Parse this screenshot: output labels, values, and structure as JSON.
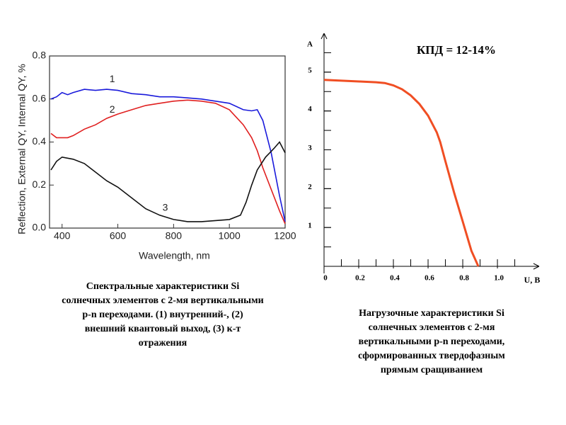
{
  "chart_data": [
    {
      "type": "line",
      "y_label": "Reflection, External QY, Internal QY, %",
      "x_label": "Wavelength, nm",
      "xlim": [
        355,
        1200
      ],
      "ylim": [
        0,
        0.8
      ],
      "xticks": [
        400,
        600,
        800,
        1000,
        1200
      ],
      "yticks": [
        {
          "value": 0,
          "label": "0.0"
        },
        0.2,
        0.4,
        0.6,
        0.8
      ],
      "series": [
        {
          "name": "1",
          "color": "#1a1adb",
          "x": [
            360,
            380,
            400,
            420,
            440,
            480,
            520,
            560,
            600,
            650,
            700,
            750,
            800,
            850,
            900,
            950,
            1000,
            1050,
            1080,
            1100,
            1120,
            1150,
            1180,
            1200
          ],
          "values": [
            0.6,
            0.61,
            0.63,
            0.62,
            0.63,
            0.645,
            0.64,
            0.645,
            0.64,
            0.625,
            0.62,
            0.61,
            0.61,
            0.605,
            0.6,
            0.59,
            0.58,
            0.55,
            0.545,
            0.55,
            0.5,
            0.35,
            0.15,
            0.03
          ]
        },
        {
          "name": "2",
          "color": "#e02020",
          "x": [
            360,
            380,
            420,
            440,
            480,
            520,
            560,
            600,
            650,
            700,
            750,
            800,
            850,
            900,
            950,
            1000,
            1050,
            1080,
            1100,
            1120,
            1150,
            1180,
            1200
          ],
          "values": [
            0.44,
            0.42,
            0.42,
            0.43,
            0.46,
            0.48,
            0.51,
            0.53,
            0.55,
            0.57,
            0.58,
            0.59,
            0.595,
            0.59,
            0.58,
            0.55,
            0.48,
            0.42,
            0.36,
            0.28,
            0.18,
            0.08,
            0.02
          ]
        },
        {
          "name": "3",
          "color": "#111111",
          "x": [
            360,
            380,
            400,
            440,
            480,
            520,
            560,
            600,
            650,
            700,
            750,
            800,
            850,
            900,
            950,
            1000,
            1040,
            1060,
            1080,
            1100,
            1130,
            1160,
            1180,
            1200
          ],
          "values": [
            0.27,
            0.31,
            0.33,
            0.32,
            0.3,
            0.26,
            0.22,
            0.19,
            0.14,
            0.09,
            0.06,
            0.04,
            0.03,
            0.03,
            0.035,
            0.04,
            0.06,
            0.12,
            0.2,
            0.27,
            0.33,
            0.37,
            0.4,
            0.35
          ]
        }
      ],
      "caption": [
        "Спектральные характеристики Si",
        "солнечных элементов с 2-мя вертикальными",
        "p-n  переходами. (1) внутренний-, (2)",
        "внешний квантовый выход,  (3)  к-т",
        "отражения"
      ]
    },
    {
      "type": "line",
      "title": "КПД = 12-14%",
      "y_label": "A",
      "x_label": "U, B",
      "xlim": [
        0,
        1.22
      ],
      "ylim": [
        0,
        6
      ],
      "xticks": [
        0,
        0.2,
        0.4,
        0.6,
        0.8,
        {
          "value": 1,
          "label": "1.0"
        }
      ],
      "yticks": [
        1,
        2,
        3,
        4,
        5
      ],
      "series": [
        {
          "color": "#f04e23",
          "x": [
            0,
            0.1,
            0.2,
            0.3,
            0.35,
            0.4,
            0.45,
            0.5,
            0.55,
            0.6,
            0.65,
            0.67,
            0.7,
            0.75,
            0.8,
            0.85,
            0.89
          ],
          "values": [
            4.8,
            4.78,
            4.76,
            4.74,
            4.72,
            4.66,
            4.56,
            4.4,
            4.18,
            3.88,
            3.45,
            3.2,
            2.7,
            1.9,
            1.15,
            0.4,
            0
          ]
        }
      ],
      "caption": [
        "Нагрузочные характеристики Si",
        "солнечных элементов с 2-мя",
        "вертикальными p-n  переходами,",
        "сформированных  твердофазным",
        "прямым сращиванием"
      ]
    }
  ]
}
